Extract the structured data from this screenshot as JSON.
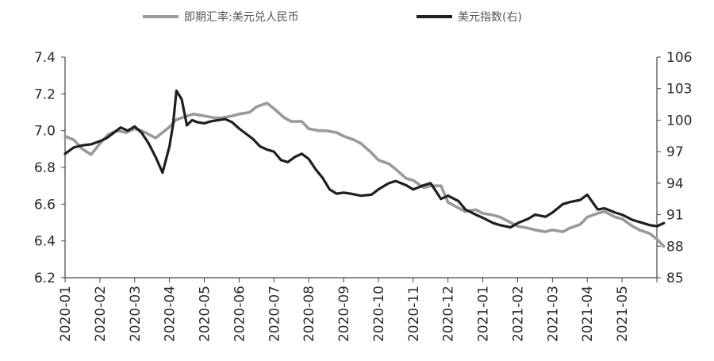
{
  "chart_data": {
    "type": "line",
    "legend_position": "top",
    "grid": false,
    "x_labels": [
      "2020-01",
      "2020-02",
      "2020-03",
      "2020-04",
      "2020-05",
      "2020-06",
      "2020-07",
      "2020-08",
      "2020-09",
      "2020-10",
      "2020-11",
      "2020-12",
      "2021-01",
      "2021-02",
      "2021-03",
      "2021-04",
      "2021-05"
    ],
    "left_axis": {
      "ylim": [
        6.2,
        7.4
      ],
      "ticks": [
        "6.2",
        "6.4",
        "6.6",
        "6.8",
        "7.0",
        "7.2",
        "7.4"
      ]
    },
    "right_axis": {
      "ylim": [
        85,
        106
      ],
      "ticks": [
        "85",
        "88",
        "91",
        "94",
        "97",
        "100",
        "103",
        "106"
      ]
    },
    "series": [
      {
        "name": "即期汇率:美元兑人民币",
        "axis": "left",
        "color": "#9a9a9a",
        "x": [
          0,
          0.25,
          0.5,
          0.75,
          1.0,
          1.25,
          1.5,
          1.75,
          2.0,
          2.2,
          2.4,
          2.6,
          2.8,
          3.0,
          3.2,
          3.5,
          3.7,
          4.0,
          4.3,
          4.5,
          4.8,
          5.0,
          5.3,
          5.5,
          5.8,
          6.0,
          6.3,
          6.5,
          6.8,
          7.0,
          7.3,
          7.5,
          7.8,
          8.0,
          8.3,
          8.5,
          8.8,
          9.0,
          9.3,
          9.5,
          9.8,
          10.0,
          10.3,
          10.5,
          10.8,
          11.0,
          11.3,
          11.5,
          11.8,
          12.0,
          12.3,
          12.5,
          12.8,
          13.0,
          13.3,
          13.5,
          13.8,
          14.0,
          14.3,
          14.5,
          14.8,
          15.0,
          15.3,
          15.5,
          15.8,
          16.0,
          16.3,
          16.5,
          16.8,
          17.0,
          17.2
        ],
        "values": [
          6.97,
          6.95,
          6.9,
          6.87,
          6.93,
          6.98,
          7.0,
          6.99,
          7.01,
          7.0,
          6.98,
          6.96,
          6.99,
          7.02,
          7.06,
          7.08,
          7.09,
          7.08,
          7.07,
          7.07,
          7.08,
          7.09,
          7.1,
          7.13,
          7.15,
          7.12,
          7.07,
          7.05,
          7.05,
          7.01,
          7.0,
          7.0,
          6.99,
          6.97,
          6.95,
          6.93,
          6.88,
          6.84,
          6.82,
          6.79,
          6.74,
          6.73,
          6.69,
          6.7,
          6.7,
          6.61,
          6.58,
          6.56,
          6.57,
          6.55,
          6.54,
          6.53,
          6.5,
          6.48,
          6.47,
          6.46,
          6.45,
          6.46,
          6.45,
          6.47,
          6.49,
          6.53,
          6.55,
          6.56,
          6.53,
          6.52,
          6.48,
          6.46,
          6.44,
          6.41,
          6.37
        ]
      },
      {
        "name": "美元指数(右)",
        "axis": "right",
        "color": "#1f1f1f",
        "x": [
          0,
          0.25,
          0.5,
          0.75,
          1.0,
          1.2,
          1.4,
          1.6,
          1.8,
          2.0,
          2.2,
          2.4,
          2.6,
          2.8,
          3.0,
          3.1,
          3.2,
          3.35,
          3.5,
          3.65,
          3.8,
          4.0,
          4.2,
          4.4,
          4.6,
          4.8,
          5.0,
          5.2,
          5.4,
          5.6,
          5.8,
          6.0,
          6.2,
          6.4,
          6.6,
          6.8,
          7.0,
          7.2,
          7.4,
          7.6,
          7.8,
          8.0,
          8.2,
          8.5,
          8.8,
          9.0,
          9.3,
          9.5,
          9.8,
          10.0,
          10.3,
          10.5,
          10.8,
          11.0,
          11.3,
          11.5,
          11.8,
          12.0,
          12.3,
          12.5,
          12.8,
          13.0,
          13.3,
          13.5,
          13.8,
          14.0,
          14.3,
          14.5,
          14.8,
          15.0,
          15.3,
          15.5,
          15.8,
          16.0,
          16.3,
          16.5,
          16.8,
          17.0,
          17.2
        ],
        "values": [
          96.8,
          97.4,
          97.6,
          97.7,
          98.0,
          98.3,
          98.8,
          99.3,
          99.0,
          99.4,
          98.8,
          97.8,
          96.5,
          95.0,
          97.5,
          99.5,
          102.8,
          102.0,
          99.5,
          100.0,
          99.8,
          99.7,
          99.9,
          100.0,
          100.1,
          99.8,
          99.2,
          98.7,
          98.2,
          97.5,
          97.2,
          97.0,
          96.2,
          96.0,
          96.5,
          96.8,
          96.3,
          95.3,
          94.5,
          93.4,
          93.0,
          93.1,
          93.0,
          92.8,
          92.9,
          93.4,
          94.0,
          94.2,
          93.8,
          93.4,
          93.8,
          94.0,
          92.5,
          92.8,
          92.3,
          91.5,
          91.0,
          90.7,
          90.2,
          90.0,
          89.8,
          90.2,
          90.6,
          91.0,
          90.8,
          91.2,
          92.0,
          92.2,
          92.4,
          92.9,
          91.5,
          91.6,
          91.2,
          91.0,
          90.5,
          90.3,
          90.0,
          89.9,
          90.2
        ]
      }
    ]
  }
}
